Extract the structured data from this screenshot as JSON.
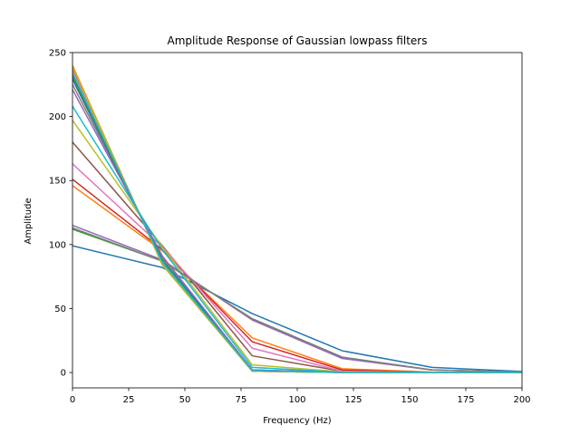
{
  "chart_data": {
    "type": "line",
    "title": "Amplitude Response of Gaussian lowpass filters",
    "xlabel": "Frequency (Hz)",
    "ylabel": "Amplitude",
    "xlim": [
      0,
      200
    ],
    "ylim": [
      -12,
      250
    ],
    "xticks": [
      0,
      25,
      50,
      75,
      100,
      125,
      150,
      175,
      200
    ],
    "yticks": [
      0,
      50,
      100,
      150,
      200,
      250
    ],
    "grid": false,
    "legend": "none",
    "x": [
      0,
      40,
      80,
      120,
      160,
      200
    ],
    "series": [
      {
        "color": "#1f77b4",
        "values": [
          99,
          82,
          46,
          17,
          4,
          0.8
        ]
      },
      {
        "color": "#ff7f0e",
        "values": [
          146,
          95,
          27,
          3,
          0.3,
          0
        ]
      },
      {
        "color": "#2ca02c",
        "values": [
          112,
          87,
          42,
          12,
          2,
          0.3
        ]
      },
      {
        "color": "#d62728",
        "values": [
          151,
          96,
          24,
          2,
          0.1,
          0
        ]
      },
      {
        "color": "#9467bd",
        "values": [
          115,
          88,
          41,
          11,
          2,
          0.3
        ]
      },
      {
        "color": "#8c564b",
        "values": [
          180,
          99,
          13,
          1,
          0,
          0
        ]
      },
      {
        "color": "#e377c2",
        "values": [
          163,
          98,
          19,
          1,
          0,
          0
        ]
      },
      {
        "color": "#7f7f7f",
        "values": [
          225,
          90,
          2,
          0,
          0,
          0
        ]
      },
      {
        "color": "#bcbd22",
        "values": [
          197,
          98,
          6,
          0.5,
          0,
          0
        ]
      },
      {
        "color": "#17becf",
        "values": [
          208,
          96,
          4,
          0.2,
          0,
          0
        ]
      },
      {
        "color": "#1f77b4",
        "values": [
          229,
          88,
          2,
          0,
          0,
          0
        ]
      },
      {
        "color": "#ff7f0e",
        "values": [
          240,
          84,
          1,
          0,
          0,
          0
        ]
      },
      {
        "color": "#2ca02c",
        "values": [
          231,
          87,
          1.5,
          0,
          0,
          0
        ]
      },
      {
        "color": "#d62728",
        "values": [
          238,
          85,
          1,
          0,
          0,
          0
        ]
      },
      {
        "color": "#9467bd",
        "values": [
          221,
          91,
          2,
          0,
          0,
          0
        ]
      },
      {
        "color": "#8c564b",
        "values": [
          233,
          86,
          1.5,
          0,
          0,
          0
        ]
      },
      {
        "color": "#e377c2",
        "values": [
          236,
          85,
          1,
          0,
          0,
          0
        ]
      },
      {
        "color": "#7f7f7f",
        "values": [
          113,
          87,
          42,
          12,
          2,
          0.3
        ]
      },
      {
        "color": "#bcbd22",
        "values": [
          239,
          84,
          1,
          0,
          0,
          0
        ]
      },
      {
        "color": "#17becf",
        "values": [
          234,
          86,
          1.5,
          0,
          0,
          0
        ]
      }
    ]
  }
}
